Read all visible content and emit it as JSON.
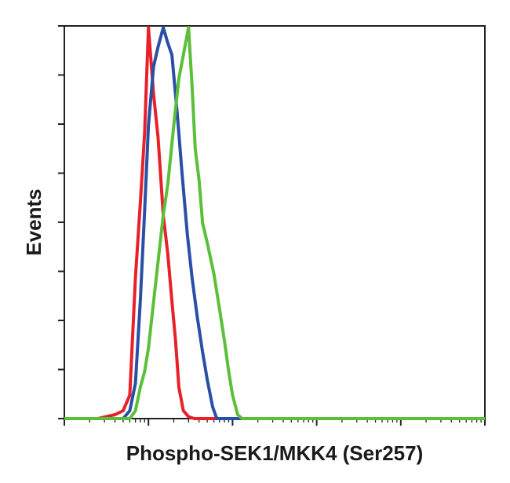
{
  "chart_data": {
    "type": "line",
    "title": "",
    "xlabel": "Phospho-SEK1/MKK4 (Ser257)",
    "ylabel": "Events",
    "x_scale": "log",
    "xlim": [
      0.1,
      10000
    ],
    "ylim": [
      0,
      100
    ],
    "grid": false,
    "legend": "none",
    "series": [
      {
        "color": "#e8202a",
        "x": [
          0.1,
          0.25,
          0.4,
          0.5,
          0.6,
          0.7,
          0.8,
          0.9,
          1.0,
          1.15,
          1.3,
          1.5,
          1.7,
          1.9,
          2.1,
          2.3,
          2.6,
          3.0,
          3.5,
          4.0,
          5.0,
          10000
        ],
        "y": [
          0,
          0,
          1,
          2,
          6,
          36,
          55,
          73,
          100,
          83,
          72,
          52,
          42,
          30,
          20,
          8,
          2,
          0.5,
          0,
          0,
          0,
          0
        ]
      },
      {
        "color": "#2a4fa6",
        "x": [
          0.1,
          0.5,
          0.6,
          0.7,
          0.8,
          0.9,
          1.0,
          1.15,
          1.3,
          1.5,
          1.7,
          1.9,
          2.2,
          2.5,
          2.9,
          3.3,
          3.8,
          4.4,
          5.0,
          5.8,
          6.5,
          10000
        ],
        "y": [
          0,
          0,
          2,
          9,
          30,
          53,
          75,
          90,
          95,
          100,
          96,
          93,
          78,
          63,
          47,
          36,
          26,
          17,
          10,
          3,
          0,
          0
        ]
      },
      {
        "color": "#5cbf3a",
        "x": [
          0.1,
          0.6,
          0.7,
          0.8,
          0.9,
          1.0,
          1.1,
          1.3,
          1.5,
          1.7,
          2.0,
          2.3,
          2.6,
          3.0,
          3.3,
          3.6,
          4.0,
          4.4,
          5.0,
          6.0,
          7.0,
          8.0,
          9.0,
          10.0,
          11.5,
          13.0,
          15.0,
          18.0,
          20.0,
          10000
        ],
        "y": [
          0,
          0,
          2,
          8,
          12,
          18,
          26,
          40,
          52,
          60,
          75,
          87,
          93,
          100,
          85,
          69,
          61,
          50,
          45,
          37,
          28,
          20,
          12,
          6,
          1,
          0,
          0,
          0,
          0,
          0
        ]
      }
    ]
  }
}
